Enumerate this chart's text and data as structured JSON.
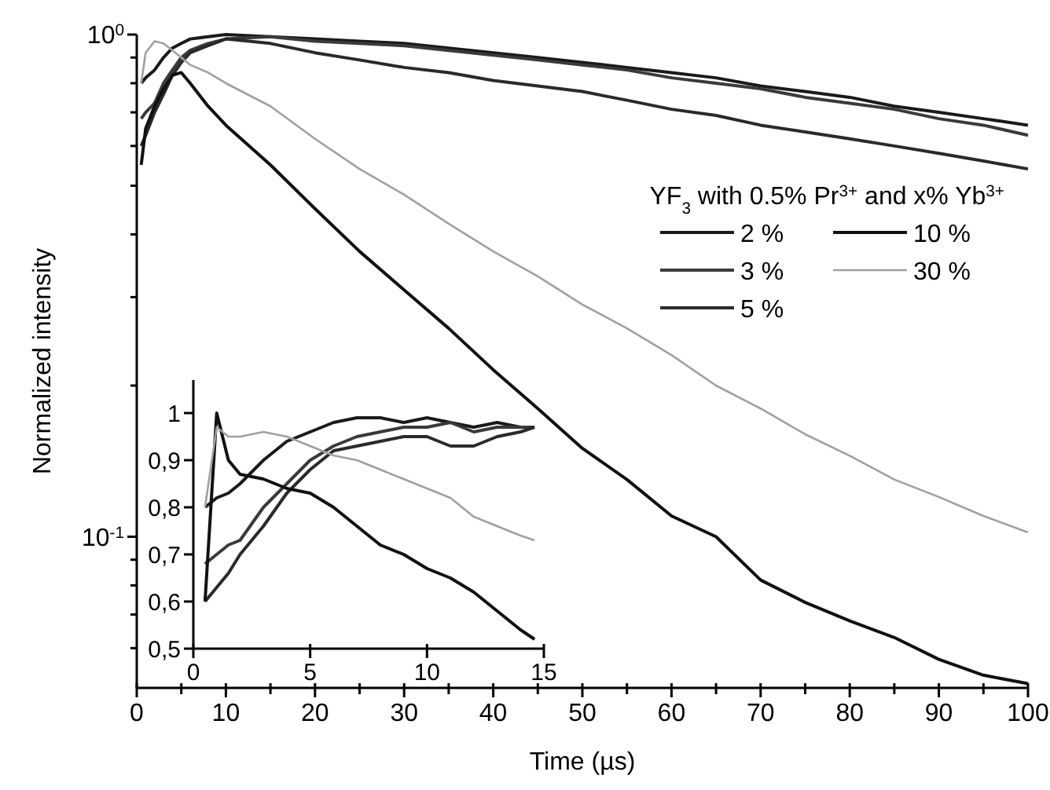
{
  "chart_data": [
    {
      "type": "line",
      "xlabel": "Time (µs)",
      "ylabel": "Normalized intensity",
      "legend_title": "YF$_{3}$ with 0.5% Pr$^{3+}$ and x% Yb$^{3+}$",
      "legend": "right",
      "log": "y",
      "grid": false,
      "marker": "none",
      "line_style": "solid",
      "xlim": [
        0,
        100
      ],
      "ylim": [
        0.05,
        1
      ],
      "xticks": [
        0,
        {
          "value": 5,
          "label": null
        },
        10,
        {
          "value": 15,
          "label": null
        },
        20,
        {
          "value": 25,
          "label": null
        },
        30,
        {
          "value": 35,
          "label": null
        },
        40,
        {
          "value": 45,
          "label": null
        },
        50,
        {
          "value": 55,
          "label": null
        },
        60,
        {
          "value": 65,
          "label": null
        },
        70,
        {
          "value": 75,
          "label": null
        },
        80,
        {
          "value": 85,
          "label": null
        },
        90,
        {
          "value": 95,
          "label": null
        },
        100
      ],
      "yticks": [
        {
          "value": 1,
          "label": "10$^{0}$"
        },
        {
          "value": 0.9,
          "label": null
        },
        {
          "value": 0.8,
          "label": null
        },
        {
          "value": 0.7,
          "label": null
        },
        {
          "value": 0.6,
          "label": null
        },
        {
          "value": 0.5,
          "label": null
        },
        {
          "value": 0.4,
          "label": null
        },
        {
          "value": 0.3,
          "label": null
        },
        {
          "value": 0.2,
          "label": null
        },
        {
          "value": 0.1,
          "label": "10$^{-1}$"
        },
        {
          "value": 0.09,
          "label": null
        },
        {
          "value": 0.08,
          "label": null
        },
        {
          "value": 0.07,
          "label": null
        },
        {
          "value": 0.06,
          "label": null
        }
      ],
      "x": [
        0.5,
        1,
        2,
        3,
        4,
        5,
        6,
        8,
        10,
        15,
        20,
        25,
        30,
        35,
        40,
        45,
        50,
        55,
        60,
        65,
        70,
        75,
        80,
        85,
        90,
        95,
        100
      ],
      "series": [
        {
          "name": "2 %",
          "color": "#1a1a1a",
          "values": [
            0.8,
            0.82,
            0.85,
            0.9,
            0.94,
            0.96,
            0.98,
            0.99,
            1.0,
            0.99,
            0.98,
            0.97,
            0.96,
            0.94,
            0.92,
            0.9,
            0.88,
            0.86,
            0.84,
            0.82,
            0.79,
            0.77,
            0.75,
            0.72,
            0.7,
            0.68,
            0.66
          ]
        },
        {
          "name": "3 %",
          "color": "#3a3a3a",
          "values": [
            0.68,
            0.7,
            0.73,
            0.8,
            0.85,
            0.9,
            0.93,
            0.96,
            0.98,
            0.99,
            0.97,
            0.96,
            0.95,
            0.93,
            0.91,
            0.89,
            0.87,
            0.85,
            0.82,
            0.8,
            0.78,
            0.75,
            0.73,
            0.71,
            0.68,
            0.66,
            0.63
          ]
        },
        {
          "name": "5 %",
          "color": "#2a2a2a",
          "values": [
            0.6,
            0.63,
            0.7,
            0.76,
            0.83,
            0.88,
            0.92,
            0.95,
            0.98,
            0.96,
            0.92,
            0.89,
            0.86,
            0.84,
            0.81,
            0.79,
            0.77,
            0.74,
            0.71,
            0.69,
            0.66,
            0.64,
            0.62,
            0.6,
            0.58,
            0.56,
            0.54
          ]
        },
        {
          "name": "10 %",
          "color": "#111111",
          "values": [
            0.55,
            0.65,
            0.72,
            0.78,
            0.83,
            0.84,
            0.8,
            0.72,
            0.66,
            0.55,
            0.45,
            0.37,
            0.31,
            0.26,
            0.215,
            0.18,
            0.15,
            0.13,
            0.11,
            0.1,
            0.082,
            0.074,
            0.068,
            0.063,
            0.057,
            0.053,
            0.051
          ]
        },
        {
          "name": "30 %",
          "color": "#a0a0a0",
          "values": [
            0.8,
            0.92,
            0.97,
            0.96,
            0.93,
            0.9,
            0.87,
            0.84,
            0.8,
            0.72,
            0.62,
            0.54,
            0.48,
            0.42,
            0.37,
            0.33,
            0.29,
            0.26,
            0.23,
            0.2,
            0.18,
            0.16,
            0.145,
            0.13,
            0.12,
            0.11,
            0.102
          ]
        }
      ]
    },
    {
      "type": "line",
      "marker": "none",
      "line_style": "solid",
      "grid": false,
      "xlim": [
        0,
        15
      ],
      "ylim": [
        0.5,
        1.07
      ],
      "xticks": [
        0,
        5,
        10,
        15
      ],
      "yticks": [
        {
          "value": 0.5,
          "label": "0,5"
        },
        {
          "value": 0.6,
          "label": "0,6"
        },
        {
          "value": 0.7,
          "label": "0,7"
        },
        {
          "value": 0.8,
          "label": "0,8"
        },
        {
          "value": 0.9,
          "label": "0,9"
        },
        1
      ],
      "x": [
        0.5,
        1,
        1.5,
        2,
        3,
        4,
        5,
        6,
        7,
        8,
        9,
        10,
        11,
        12,
        13,
        14,
        14.6
      ],
      "series": [
        {
          "color": "#1a1a1a",
          "values": [
            0.8,
            0.82,
            0.83,
            0.85,
            0.9,
            0.94,
            0.96,
            0.98,
            0.99,
            0.99,
            0.98,
            0.99,
            0.98,
            0.97,
            0.98,
            0.97,
            0.97
          ]
        },
        {
          "color": "#3a3a3a",
          "values": [
            0.68,
            0.7,
            0.72,
            0.73,
            0.8,
            0.85,
            0.9,
            0.93,
            0.95,
            0.96,
            0.97,
            0.97,
            0.98,
            0.96,
            0.97,
            0.97,
            0.97
          ]
        },
        {
          "color": "#2a2a2a",
          "values": [
            0.6,
            0.63,
            0.66,
            0.7,
            0.76,
            0.83,
            0.88,
            0.92,
            0.93,
            0.94,
            0.95,
            0.95,
            0.93,
            0.93,
            0.95,
            0.96,
            0.97
          ]
        },
        {
          "color": "#111111",
          "values": [
            0.6,
            1.0,
            0.9,
            0.87,
            0.86,
            0.84,
            0.83,
            0.8,
            0.76,
            0.72,
            0.7,
            0.67,
            0.65,
            0.62,
            0.58,
            0.54,
            0.52
          ]
        },
        {
          "color": "#a0a0a0",
          "values": [
            0.8,
            0.97,
            0.95,
            0.95,
            0.96,
            0.95,
            0.93,
            0.91,
            0.9,
            0.88,
            0.86,
            0.84,
            0.82,
            0.78,
            0.76,
            0.74,
            0.73
          ]
        }
      ]
    }
  ]
}
